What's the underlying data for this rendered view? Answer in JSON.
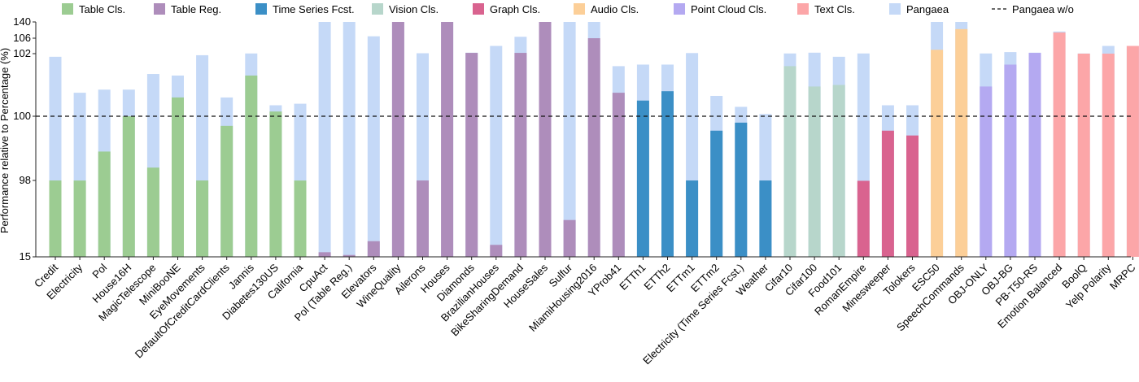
{
  "chart_data": {
    "type": "bar",
    "ylabel": "Performance relative to Percentage (%)",
    "y_ticks": [
      "15",
      "98",
      "100",
      "102",
      "106",
      "140"
    ],
    "y_scale": "piecewise (compressed below 98 and above 102)",
    "ylim": [
      15,
      140
    ],
    "reference_line": {
      "value": 100,
      "label": "Pangaea w/o",
      "style": "dashed"
    },
    "legend": [
      {
        "label": "Table Cls.",
        "color": "#9ccc92"
      },
      {
        "label": "Table Reg.",
        "color": "#ae8dbb"
      },
      {
        "label": "Time Series Fcst.",
        "color": "#3b8fc6"
      },
      {
        "label": "Vision Cls.",
        "color": "#b7d6cb"
      },
      {
        "label": "Graph Cls.",
        "color": "#d9638f"
      },
      {
        "label": "Audio Cls.",
        "color": "#fccf98"
      },
      {
        "label": "Point Cloud Cls.",
        "color": "#b4a9f1"
      },
      {
        "label": "Text Cls.",
        "color": "#fca6a8"
      },
      {
        "label": "Pangaea",
        "color": "#c5d9f7"
      },
      {
        "label": "Pangaea w/o",
        "color": "#111111",
        "style": "dashed"
      }
    ],
    "legend_position": "top",
    "series_names": [
      "Pangaea w/o",
      "Pangaea"
    ],
    "categories": [
      "Credit",
      "Electricity",
      "Pol",
      "House16H",
      "MagicTelescope",
      "MiniBooNE",
      "EyeMovements",
      "DefaultOfCreditCardClients",
      "Jannis",
      "Diabetes130US",
      "California",
      "CpuAct",
      "Pol (Table Reg.)",
      "Elevators",
      "WineQuality",
      "Ailerons",
      "Houses",
      "Diamonds",
      "BrazilianHouses",
      "BikeSharingDemand",
      "HouseSales",
      "Sulfur",
      "MiamiHousing2016",
      "YProb41",
      "ETTh1",
      "ETTh2",
      "ETTm1",
      "ETTm2",
      "Electricity (Time Series Fcst.)",
      "Weather",
      "Cifar10",
      "Cifar100",
      "Food101",
      "RomanEmpire",
      "Minesweeper",
      "Tolokers",
      "ESC50",
      "SpeechCommands",
      "OBJ-ONLY",
      "OBJ-BG",
      "PB-T50-RS",
      "Emotion Balanced",
      "BoolQ",
      "Yelp Polarity",
      "MRPC"
    ],
    "groups": [
      "Table Cls.",
      "Table Cls.",
      "Table Cls.",
      "Table Cls.",
      "Table Cls.",
      "Table Cls.",
      "Table Cls.",
      "Table Cls.",
      "Table Cls.",
      "Table Cls.",
      "Table Cls.",
      "Table Reg.",
      "Table Reg.",
      "Table Reg.",
      "Table Reg.",
      "Table Reg.",
      "Table Reg.",
      "Table Reg.",
      "Table Reg.",
      "Table Reg.",
      "Table Reg.",
      "Table Reg.",
      "Table Reg.",
      "Table Reg.",
      "Time Series Fcst.",
      "Time Series Fcst.",
      "Time Series Fcst.",
      "Time Series Fcst.",
      "Time Series Fcst.",
      "Time Series Fcst.",
      "Vision Cls.",
      "Vision Cls.",
      "Vision Cls.",
      "Graph Cls.",
      "Graph Cls.",
      "Graph Cls.",
      "Audio Cls.",
      "Audio Cls.",
      "Point Cloud Cls.",
      "Point Cloud Cls.",
      "Point Cloud Cls.",
      "Text Cls.",
      "Text Cls.",
      "Text Cls.",
      "Text Cls."
    ],
    "values_wo": [
      97.95,
      97.9,
      98.9,
      100,
      98.4,
      100.6,
      97.95,
      99.7,
      101.3,
      100.15,
      97.9,
      20,
      17,
      32,
      140,
      97.95,
      140,
      102.2,
      28,
      102.2,
      140,
      55,
      106,
      100.75,
      100.5,
      100.8,
      97.95,
      99.55,
      99.8,
      97.95,
      101.6,
      100.95,
      101,
      97.6,
      99.55,
      99.4,
      103,
      125,
      100.95,
      101.65,
      102.2,
      118,
      102,
      102,
      104
    ],
    "values_pangaea": [
      101.9,
      100.75,
      100.85,
      100.85,
      101.35,
      101.3,
      101.95,
      100.6,
      102.05,
      100.35,
      100.4,
      140,
      140,
      110,
      140,
      102.1,
      140,
      102.25,
      104,
      109,
      140,
      140,
      140,
      101.6,
      101.65,
      101.65,
      102.15,
      100.65,
      100.3,
      100.07,
      102.05,
      102.25,
      101.9,
      102.05,
      100.35,
      100.35,
      140,
      140,
      102.05,
      102.4,
      102.25,
      120,
      102.05,
      104,
      104
    ]
  }
}
